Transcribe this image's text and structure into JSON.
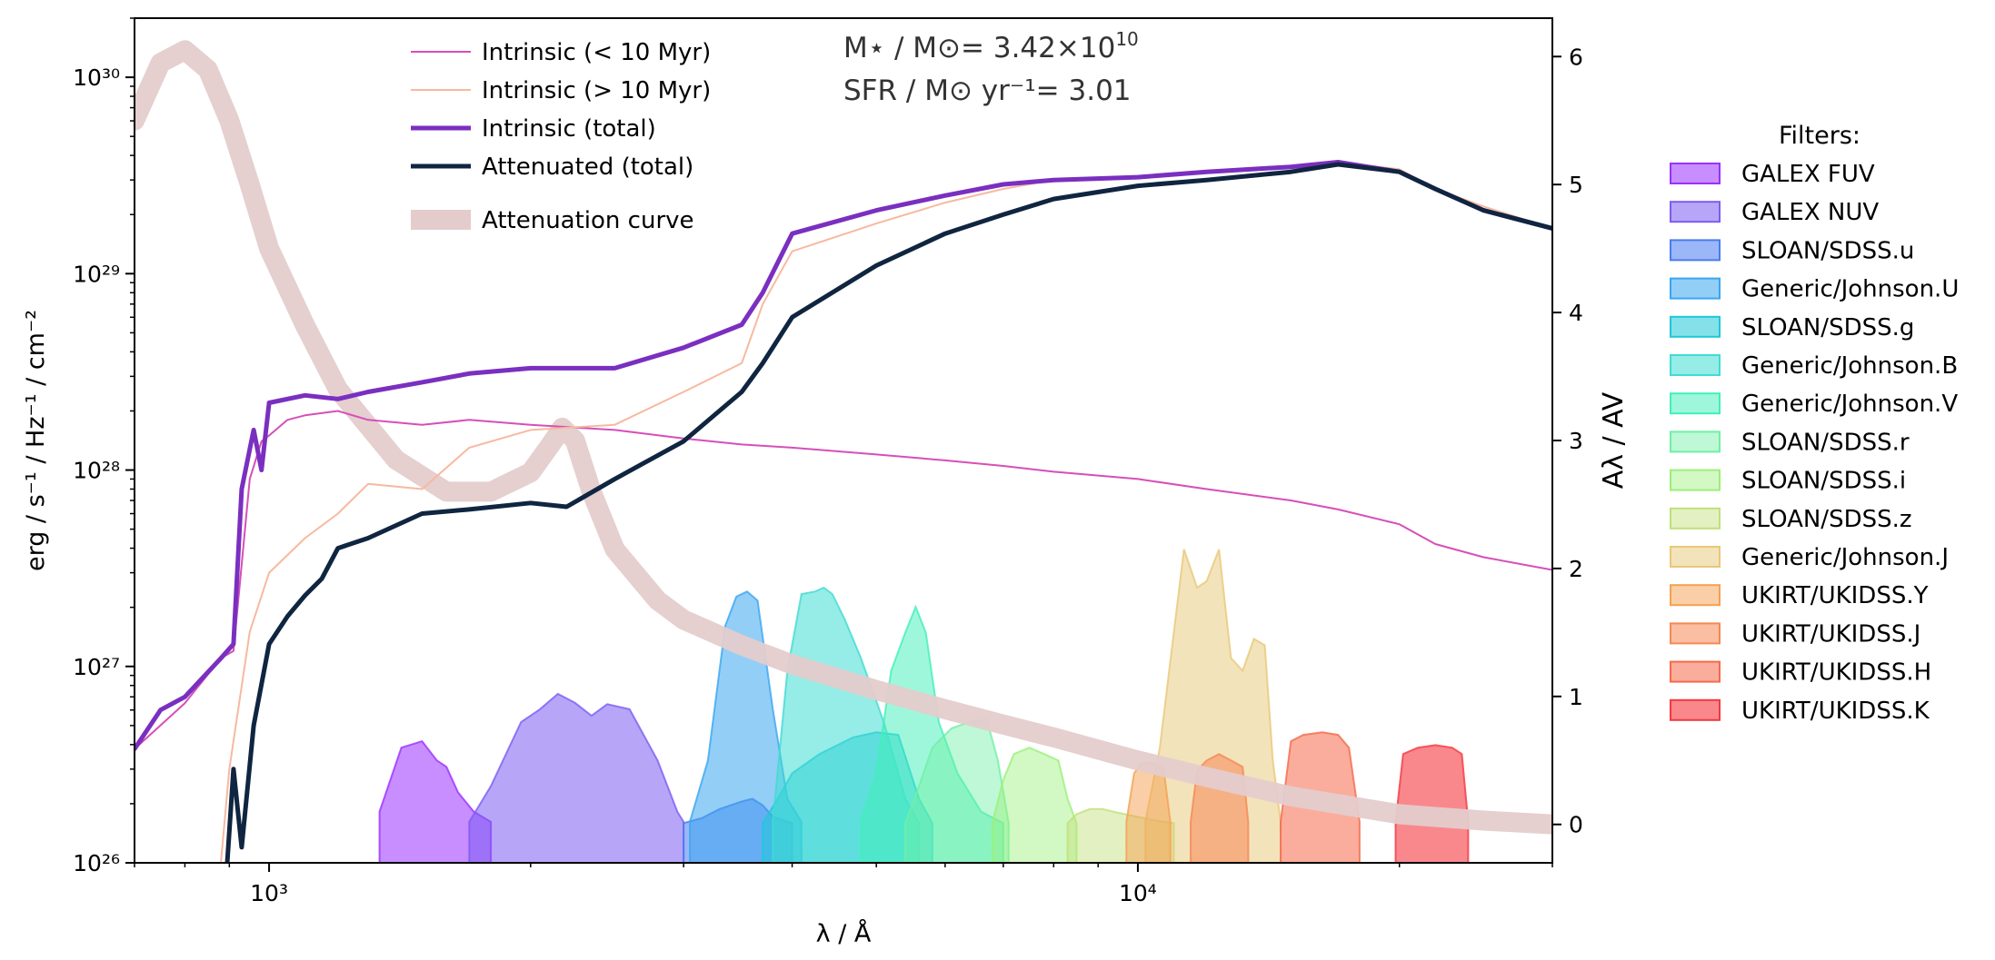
{
  "chart_data": {
    "type": "line",
    "xscale": "log",
    "yscale": "log",
    "xlim": [
      700,
      30000
    ],
    "ylim": [
      1e+26,
      2e+30
    ],
    "y2lim": [
      -0.3,
      6.3
    ],
    "xlabel": "λ / Å",
    "ylabel": "erg / s⁻¹ / Hz⁻¹ / cm⁻²",
    "y2label": "Aλ / AV",
    "xticks": [
      {
        "value": 1000,
        "label": "10³"
      },
      {
        "value": 10000,
        "label": "10⁴"
      }
    ],
    "yticks": [
      {
        "value": 1e+26,
        "label": "10²⁶"
      },
      {
        "value": 1e+27,
        "label": "10²⁷"
      },
      {
        "value": 1e+28,
        "label": "10²⁸"
      },
      {
        "value": 1e+29,
        "label": "10²⁹"
      },
      {
        "value": 1e+30,
        "label": "10³⁰"
      }
    ],
    "y2ticks": [
      {
        "value": 0,
        "label": "0"
      },
      {
        "value": 1,
        "label": "1"
      },
      {
        "value": 2,
        "label": "2"
      },
      {
        "value": 3,
        "label": "3"
      },
      {
        "value": 4,
        "label": "4"
      },
      {
        "value": 5,
        "label": "5"
      },
      {
        "value": 6,
        "label": "6"
      }
    ],
    "annotations": {
      "mass_label": "M⋆ / M⊙= 3.42×10",
      "mass_exp": "10",
      "sfr_label": "SFR / M⊙ yr⁻¹= 3.01"
    },
    "legend": [
      {
        "label": "Intrinsic (< 10 Myr)",
        "color": "#d64fb8",
        "width": 2
      },
      {
        "label": "Intrinsic (> 10 Myr)",
        "color": "#f7b9a0",
        "width": 2
      },
      {
        "label": "Intrinsic (total)",
        "color": "#7a2fc0",
        "width": 5
      },
      {
        "label": "Attenuated (total)",
        "color": "#0f2540",
        "width": 5
      },
      {
        "label": "Attenuation curve",
        "color": "#e4cccc",
        "width": 22
      }
    ],
    "series": [
      {
        "name": "Intrinsic (< 10 Myr)",
        "color": "#d64fb8",
        "width": 2,
        "axis": "left",
        "x": [
          700,
          800,
          880,
          910,
          950,
          980,
          1000,
          1050,
          1100,
          1200,
          1300,
          1500,
          1700,
          2000,
          2500,
          3000,
          3500,
          4000,
          5000,
          6000,
          7000,
          8000,
          10000,
          12000,
          15000,
          17000,
          20000,
          22000,
          25000,
          30000
        ],
        "y": [
          3.8e+26,
          6.5e+26,
          1.1e+27,
          1.2e+27,
          9e+27,
          1.4e+28,
          1.5e+28,
          1.8e+28,
          1.9e+28,
          2e+28,
          1.8e+28,
          1.7e+28,
          1.8e+28,
          1.7e+28,
          1.6e+28,
          1.45e+28,
          1.35e+28,
          1.3e+28,
          1.2e+28,
          1.12e+28,
          1.05e+28,
          9.8e+27,
          9e+27,
          8e+27,
          7e+27,
          6.3e+27,
          5.3e+27,
          4.2e+27,
          3.6e+27,
          3.1e+27
        ]
      },
      {
        "name": "Intrinsic (> 10 Myr)",
        "color": "#f7b9a0",
        "width": 2,
        "axis": "left",
        "x": [
          880,
          900,
          950,
          1000,
          1100,
          1200,
          1300,
          1500,
          1700,
          2000,
          2500,
          3000,
          3500,
          3700,
          4000,
          5000,
          6000,
          7000,
          8000,
          10000,
          12000,
          15000,
          17000,
          20000,
          22000,
          25000,
          30000
        ],
        "y": [
          1e+26,
          3e+26,
          1.5e+27,
          3e+27,
          4.5e+27,
          6e+27,
          8.5e+27,
          8e+27,
          1.3e+28,
          1.6e+28,
          1.7e+28,
          2.5e+28,
          3.5e+28,
          7e+28,
          1.3e+29,
          1.8e+29,
          2.3e+29,
          2.7e+29,
          3e+29,
          3.15e+29,
          3.3e+29,
          3.5e+29,
          3.7e+29,
          3.4e+29,
          2.7e+29,
          2.2e+29,
          1.7e+29
        ]
      },
      {
        "name": "Intrinsic (total)",
        "color": "#7a2fc0",
        "width": 5,
        "axis": "left",
        "x": [
          700,
          750,
          800,
          880,
          910,
          930,
          960,
          980,
          1000,
          1100,
          1200,
          1300,
          1500,
          1700,
          2000,
          2500,
          3000,
          3500,
          3700,
          4000,
          5000,
          6000,
          7000,
          8000,
          10000,
          12000,
          15000,
          17000,
          20000,
          22000,
          25000,
          30000
        ],
        "y": [
          3.8e+26,
          6e+26,
          7e+26,
          1.1e+27,
          1.3e+27,
          8e+27,
          1.6e+28,
          1e+28,
          2.2e+28,
          2.4e+28,
          2.3e+28,
          2.5e+28,
          2.8e+28,
          3.1e+28,
          3.3e+28,
          3.3e+28,
          4.2e+28,
          5.5e+28,
          8e+28,
          1.6e+29,
          2.1e+29,
          2.5e+29,
          2.85e+29,
          3e+29,
          3.1e+29,
          3.3e+29,
          3.5e+29,
          3.7e+29,
          3.3e+29,
          2.7e+29,
          2.1e+29,
          1.7e+29
        ]
      },
      {
        "name": "Attenuated (total)",
        "color": "#0f2540",
        "width": 5,
        "axis": "left",
        "x": [
          895,
          910,
          930,
          960,
          1000,
          1050,
          1100,
          1150,
          1200,
          1300,
          1500,
          1700,
          2000,
          2200,
          2500,
          3000,
          3500,
          3700,
          4000,
          5000,
          6000,
          7000,
          8000,
          10000,
          12000,
          15000,
          17000,
          20000,
          22000,
          25000,
          30000
        ],
        "y": [
          1e+26,
          3e+26,
          1.2e+26,
          5e+26,
          1.3e+27,
          1.8e+27,
          2.3e+27,
          2.8e+27,
          4e+27,
          4.5e+27,
          6e+27,
          6.3e+27,
          6.8e+27,
          6.5e+27,
          9e+27,
          1.4e+28,
          2.5e+28,
          3.5e+28,
          6e+28,
          1.1e+29,
          1.6e+29,
          2e+29,
          2.4e+29,
          2.8e+29,
          3e+29,
          3.3e+29,
          3.6e+29,
          3.3e+29,
          2.7e+29,
          2.1e+29,
          1.7e+29
        ]
      },
      {
        "name": "Attenuation curve",
        "color": "#e4cccc",
        "width": 22,
        "axis": "right",
        "opacity": 0.95,
        "x": [
          700,
          750,
          800,
          850,
          900,
          950,
          1000,
          1100,
          1200,
          1400,
          1600,
          1800,
          2000,
          2100,
          2175,
          2250,
          2350,
          2500,
          2800,
          3000,
          3500,
          4000,
          5000,
          6000,
          7000,
          8000,
          10000,
          12000,
          15000,
          20000,
          25000,
          30000
        ],
        "y": [
          5.5,
          5.95,
          6.05,
          5.9,
          5.5,
          5.0,
          4.5,
          3.9,
          3.4,
          2.85,
          2.6,
          2.6,
          2.75,
          2.95,
          3.1,
          3.0,
          2.6,
          2.15,
          1.75,
          1.6,
          1.4,
          1.25,
          1.05,
          0.9,
          0.78,
          0.68,
          0.5,
          0.37,
          0.22,
          0.08,
          0.03,
          0.0
        ]
      }
    ],
    "filters": [
      {
        "name": "GALEX FUV",
        "color": "#9b30ff",
        "alpha": 0.55,
        "x": [
          1340,
          1420,
          1500,
          1560,
          1600,
          1650,
          1720,
          1800
        ],
        "peak": [
          0.1,
          0.6,
          0.65,
          0.5,
          0.45,
          0.25,
          0.1,
          0.02
        ]
      },
      {
        "name": "GALEX NUV",
        "color": "#7c5cf2",
        "alpha": 0.55,
        "x": [
          1700,
          1800,
          1950,
          2050,
          2150,
          2250,
          2350,
          2450,
          2600,
          2800,
          2950,
          3000
        ],
        "peak": [
          0.02,
          0.3,
          0.8,
          0.9,
          1.02,
          0.95,
          0.85,
          0.94,
          0.9,
          0.5,
          0.1,
          0.02
        ]
      },
      {
        "name": "SLOAN/SDSS.u",
        "color": "#4a7bf0",
        "alpha": 0.55,
        "x": [
          3000,
          3150,
          3300,
          3500,
          3600,
          3700,
          3800,
          4000
        ],
        "peak": [
          0.01,
          0.05,
          0.12,
          0.18,
          0.2,
          0.15,
          0.06,
          0.01
        ]
      },
      {
        "name": "Generic/Johnson.U",
        "color": "#3aa6f0",
        "alpha": 0.55,
        "x": [
          3050,
          3200,
          3350,
          3450,
          3550,
          3650,
          3800,
          3950,
          4100
        ],
        "peak": [
          0.02,
          0.5,
          1.55,
          1.78,
          1.82,
          1.75,
          0.9,
          0.2,
          0.02
        ]
      },
      {
        "name": "SLOAN/SDSS.g",
        "color": "#1fc8d8",
        "alpha": 0.55,
        "x": [
          3700,
          3850,
          4000,
          4300,
          4700,
          5000,
          5300,
          5600,
          5800
        ],
        "peak": [
          0.01,
          0.2,
          0.4,
          0.55,
          0.68,
          0.72,
          0.7,
          0.2,
          0.01
        ]
      },
      {
        "name": "Generic/Johnson.B",
        "color": "#40dcd2",
        "alpha": 0.55,
        "x": [
          3800,
          3950,
          4100,
          4250,
          4350,
          4450,
          4600,
          4800,
          5100,
          5400,
          5600
        ],
        "peak": [
          0.02,
          1.2,
          1.8,
          1.82,
          1.85,
          1.8,
          1.6,
          1.3,
          0.8,
          0.2,
          0.01
        ]
      },
      {
        "name": "Generic/Johnson.V",
        "color": "#40f0b8",
        "alpha": 0.5,
        "x": [
          4800,
          5000,
          5200,
          5400,
          5550,
          5700,
          5900,
          6200,
          6600,
          7000
        ],
        "peak": [
          0.02,
          0.4,
          1.2,
          1.5,
          1.7,
          1.5,
          0.8,
          0.4,
          0.1,
          0.01
        ]
      },
      {
        "name": "SLOAN/SDSS.r",
        "color": "#6ff0a5",
        "alpha": 0.45,
        "x": [
          5400,
          5600,
          5800,
          6100,
          6400,
          6700,
          6900,
          7100
        ],
        "peak": [
          0.01,
          0.3,
          0.6,
          0.75,
          0.8,
          0.82,
          0.5,
          0.01
        ]
      },
      {
        "name": "SLOAN/SDSS.i",
        "color": "#9bf07a",
        "alpha": 0.45,
        "x": [
          6800,
          7000,
          7200,
          7500,
          7800,
          8100,
          8300,
          8500
        ],
        "peak": [
          0.01,
          0.35,
          0.55,
          0.6,
          0.55,
          0.5,
          0.2,
          0.01
        ]
      },
      {
        "name": "SLOAN/SDSS.z",
        "color": "#c0e078",
        "alpha": 0.45,
        "x": [
          8300,
          8500,
          8800,
          9100,
          9500,
          10000,
          10500,
          11000
        ],
        "peak": [
          0.01,
          0.08,
          0.12,
          0.12,
          0.09,
          0.06,
          0.03,
          0.01
        ]
      },
      {
        "name": "Generic/Johnson.J",
        "color": "#e8c878",
        "alpha": 0.5,
        "x": [
          10200,
          10600,
          11000,
          11300,
          11700,
          12000,
          12400,
          12800,
          13200,
          13600,
          14000,
          14300,
          14600
        ],
        "peak": [
          0.02,
          0.6,
          1.5,
          2.15,
          1.85,
          1.9,
          2.15,
          1.3,
          1.2,
          1.45,
          1.4,
          0.5,
          0.02
        ]
      },
      {
        "name": "UKIRT/UKIDSS.Y",
        "color": "#f5a050",
        "alpha": 0.5,
        "x": [
          9700,
          9900,
          10100,
          10400,
          10700,
          10900
        ],
        "peak": [
          0.02,
          0.4,
          0.48,
          0.48,
          0.45,
          0.02
        ]
      },
      {
        "name": "UKIRT/UKIDSS.J",
        "color": "#f58855",
        "alpha": 0.55,
        "x": [
          11500,
          11700,
          12000,
          12400,
          12800,
          13200,
          13400
        ],
        "peak": [
          0.02,
          0.42,
          0.5,
          0.55,
          0.5,
          0.45,
          0.02
        ]
      },
      {
        "name": "UKIRT/UKIDSS.H",
        "color": "#f56a4a",
        "alpha": 0.55,
        "x": [
          14600,
          15000,
          15500,
          16300,
          17000,
          17500,
          18000
        ],
        "peak": [
          0.02,
          0.65,
          0.7,
          0.72,
          0.7,
          0.6,
          0.02
        ]
      },
      {
        "name": "UKIRT/UKIDSS.K",
        "color": "#f53840",
        "alpha": 0.6,
        "x": [
          19800,
          20200,
          21000,
          22000,
          23000,
          23600,
          24000
        ],
        "peak": [
          0.02,
          0.55,
          0.6,
          0.62,
          0.6,
          0.55,
          0.02
        ]
      }
    ],
    "filters_legend_title": "Filters:"
  }
}
